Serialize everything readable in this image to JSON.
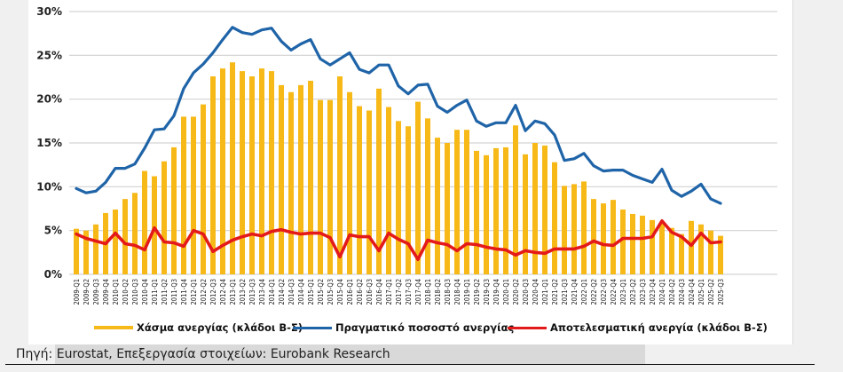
{
  "colors": {
    "gap": "#f7b918",
    "actual": "#1f64a8",
    "effective": "#e41a1a",
    "grid": "#d3d3d3"
  },
  "source": "Πηγή: Eurostat, Επεξεργασία στοιχείων: Eurobank Research",
  "chart_data": {
    "type": "bar",
    "title": "",
    "xlabel": "",
    "ylabel": "",
    "ylim": [
      0,
      30
    ],
    "yticks": [
      "0%",
      "5%",
      "10%",
      "15%",
      "20%",
      "25%",
      "30%"
    ],
    "ytick_values": [
      0,
      5,
      10,
      15,
      20,
      25,
      30
    ],
    "grid": true,
    "legend_position": "bottom",
    "categories": [
      "2009-Q1",
      "2009-Q2",
      "2009-Q3",
      "2009-Q4",
      "2010-Q1",
      "2010-Q2",
      "2010-Q3",
      "2010-Q4",
      "2011-Q1",
      "2011-Q2",
      "2011-Q3",
      "2011-Q4",
      "2012-Q1",
      "2012-Q2",
      "2012-Q3",
      "2012-Q4",
      "2013-Q1",
      "2013-Q2",
      "2013-Q3",
      "2013-Q4",
      "2014-Q1",
      "2014-Q2",
      "2014-Q3",
      "2014-Q4",
      "2015-Q1",
      "2015-Q2",
      "2015-Q3",
      "2015-Q4",
      "2016-Q1",
      "2016-Q2",
      "2016-Q3",
      "2016-Q4",
      "2017-Q1",
      "2017-Q2",
      "2017-Q3",
      "2017-Q4",
      "2018-Q1",
      "2018-Q2",
      "2018-Q3",
      "2018-Q4",
      "2019-Q1",
      "2019-Q2",
      "2019-Q3",
      "2019-Q4",
      "2020-Q1",
      "2020-Q2",
      "2020-Q3",
      "2020-Q4",
      "2021-Q1",
      "2021-Q2",
      "2021-Q3",
      "2021-Q4",
      "2022-Q1",
      "2022-Q2",
      "2022-Q3",
      "2022-Q4",
      "2023-Q1",
      "2023-Q2",
      "2023-Q3",
      "2023-Q4",
      "2024-Q1",
      "2024-Q2",
      "2024-Q3",
      "2024-Q4",
      "2025-Q1",
      "2025-Q2",
      "2025-Q3"
    ],
    "series": [
      {
        "name": "Χάσμα ανεργίας (κλάδοι Β-Σ)",
        "type": "bar",
        "values": [
          5.2,
          5.0,
          5.7,
          7.0,
          7.4,
          8.6,
          9.3,
          11.8,
          11.2,
          12.9,
          14.5,
          18.0,
          18.0,
          19.4,
          22.6,
          23.5,
          24.2,
          23.2,
          22.6,
          23.5,
          23.2,
          21.6,
          20.8,
          21.6,
          22.1,
          19.9,
          19.9,
          22.6,
          20.8,
          19.2,
          18.7,
          21.2,
          19.1,
          17.5,
          16.9,
          19.7,
          17.8,
          15.6,
          15.0,
          16.5,
          16.5,
          14.1,
          13.6,
          14.4,
          14.5,
          17.0,
          13.7,
          15.0,
          14.7,
          12.8,
          10.1,
          10.3,
          10.6,
          8.6,
          8.1,
          8.5,
          7.4,
          6.9,
          6.7,
          6.2,
          5.8,
          5.3,
          4.6,
          6.1,
          5.7,
          5.0,
          4.4
        ]
      },
      {
        "name": "Πραγματικό ποσοστό ανεργίας",
        "type": "line",
        "values": [
          9.8,
          9.3,
          9.5,
          10.5,
          12.1,
          12.1,
          12.6,
          14.4,
          16.5,
          16.6,
          18.1,
          21.2,
          23.0,
          24.0,
          25.3,
          26.8,
          28.2,
          27.6,
          27.4,
          27.9,
          28.1,
          26.6,
          25.6,
          26.3,
          26.8,
          24.6,
          23.9,
          24.6,
          25.3,
          23.4,
          23.0,
          23.9,
          23.9,
          21.5,
          20.6,
          21.6,
          21.7,
          19.2,
          18.5,
          19.3,
          19.9,
          17.5,
          16.9,
          17.3,
          17.3,
          19.3,
          16.4,
          17.5,
          17.2,
          15.9,
          13.0,
          13.2,
          13.8,
          12.4,
          11.8,
          11.9,
          11.9,
          11.3,
          10.9,
          10.5,
          12.0,
          9.6,
          8.9,
          9.5,
          10.3,
          8.6,
          8.1
        ]
      },
      {
        "name": "Αποτελεσματική ανεργία (κλάδοι Β-Σ)",
        "type": "line",
        "values": [
          4.6,
          4.1,
          3.8,
          3.5,
          4.7,
          3.5,
          3.3,
          2.8,
          5.3,
          3.7,
          3.6,
          3.2,
          5.0,
          4.6,
          2.6,
          3.3,
          3.9,
          4.3,
          4.6,
          4.4,
          4.9,
          5.1,
          4.8,
          4.6,
          4.7,
          4.7,
          4.2,
          2.0,
          4.5,
          4.3,
          4.3,
          2.7,
          4.7,
          4.0,
          3.5,
          1.7,
          3.9,
          3.6,
          3.4,
          2.7,
          3.5,
          3.4,
          3.1,
          2.9,
          2.8,
          2.2,
          2.7,
          2.5,
          2.4,
          2.9,
          2.9,
          2.9,
          3.2,
          3.8,
          3.4,
          3.3,
          4.1,
          4.1,
          4.1,
          4.3,
          6.1,
          4.8,
          4.3,
          3.3,
          4.7,
          3.6,
          3.7
        ]
      }
    ]
  }
}
